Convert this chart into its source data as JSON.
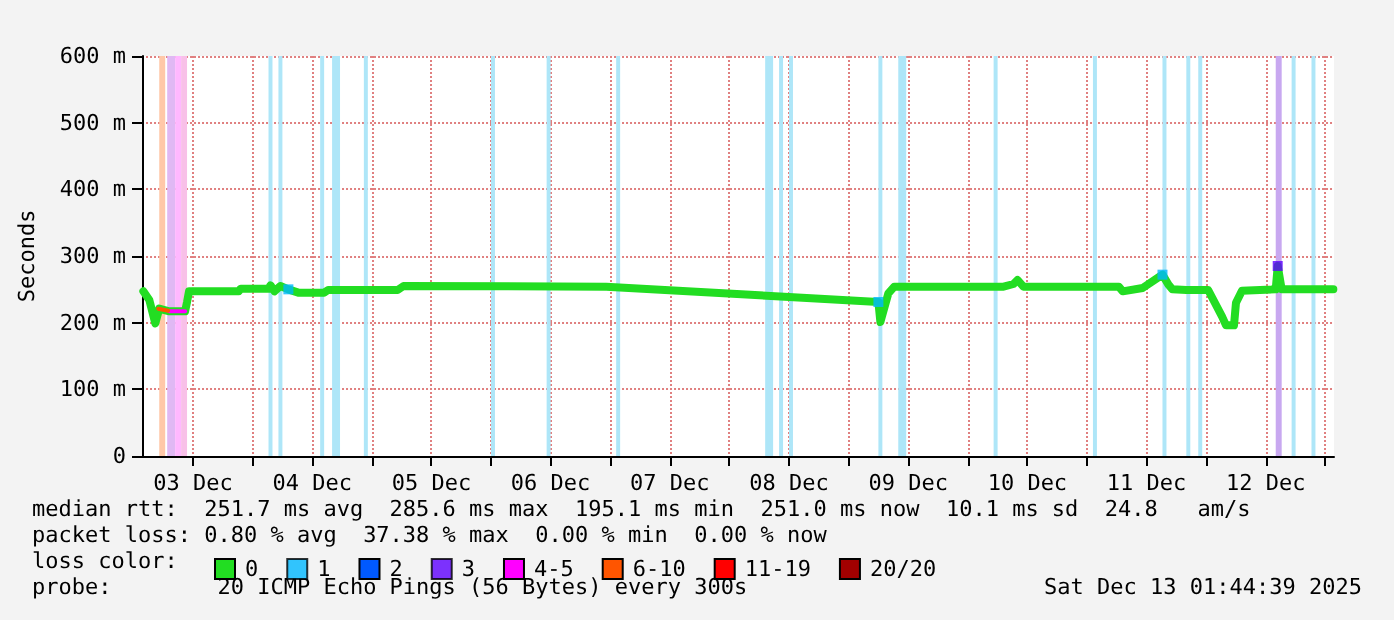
{
  "chart_data": {
    "type": "line",
    "ylabel": "Seconds",
    "legend_title": "loss color:",
    "legend": "bottom",
    "grid": true,
    "line_style": "solid",
    "xlim": [
      "2025-12-03T01:44",
      "2025-12-13T01:44"
    ],
    "xticks": [
      {
        "value": "2025-12-03T12:00",
        "label": "03 Dec"
      },
      {
        "value": "2025-12-04T00:00",
        "label": null
      },
      {
        "value": "2025-12-04T12:00",
        "label": "04 Dec"
      },
      {
        "value": "2025-12-05T00:00",
        "label": null
      },
      {
        "value": "2025-12-05T12:00",
        "label": "05 Dec"
      },
      {
        "value": "2025-12-06T00:00",
        "label": null
      },
      {
        "value": "2025-12-06T12:00",
        "label": "06 Dec"
      },
      {
        "value": "2025-12-07T00:00",
        "label": null
      },
      {
        "value": "2025-12-07T12:00",
        "label": "07 Dec"
      },
      {
        "value": "2025-12-08T00:00",
        "label": null
      },
      {
        "value": "2025-12-08T12:00",
        "label": "08 Dec"
      },
      {
        "value": "2025-12-09T00:00",
        "label": null
      },
      {
        "value": "2025-12-09T12:00",
        "label": "09 Dec"
      },
      {
        "value": "2025-12-10T00:00",
        "label": null
      },
      {
        "value": "2025-12-10T12:00",
        "label": "10 Dec"
      },
      {
        "value": "2025-12-11T00:00",
        "label": null
      },
      {
        "value": "2025-12-11T12:00",
        "label": "11 Dec"
      },
      {
        "value": "2025-12-12T00:00",
        "label": null
      },
      {
        "value": "2025-12-12T12:00",
        "label": "12 Dec"
      },
      {
        "value": "2025-12-13T00:00",
        "label": null
      }
    ],
    "ylim": [
      0,
      600
    ],
    "yticks": [
      0,
      {
        "value": 100,
        "label": "100 m"
      },
      {
        "value": 200,
        "label": "200 m"
      },
      {
        "value": 300,
        "label": "300 m"
      },
      {
        "value": 400,
        "label": "400 m"
      },
      {
        "value": 500,
        "label": "500 m"
      },
      {
        "value": 600,
        "label": "600 m"
      }
    ],
    "series": [
      {
        "name": "0",
        "color": "#22dd22",
        "x": [
          "2025-12-03T02:00",
          "2025-12-03T03:12",
          "2025-12-03T04:24",
          "2025-12-03T05:12",
          "2025-12-03T07:12",
          "2025-12-03T10:24",
          "2025-12-03T10:48",
          "2025-12-03T11:12",
          "2025-12-03T21:12",
          "2025-12-03T21:36",
          "2025-12-04T03:12",
          "2025-12-04T03:36",
          "2025-12-04T04:24",
          "2025-12-04T05:36",
          "2025-12-04T07:12",
          "2025-12-04T09:12",
          "2025-12-04T14:24",
          "2025-12-04T15:12",
          "2025-12-05T05:12",
          "2025-12-05T06:24",
          "2025-12-06T23:12",
          "2025-12-09T06:00",
          "2025-12-09T06:24",
          "2025-12-09T08:00",
          "2025-12-09T09:12",
          "2025-12-10T07:12",
          "2025-12-10T09:12",
          "2025-12-10T10:00",
          "2025-12-10T11:12",
          "2025-12-11T06:24",
          "2025-12-11T07:12",
          "2025-12-11T11:12",
          "2025-12-11T15:12",
          "2025-12-11T16:24",
          "2025-12-11T17:12",
          "2025-12-11T20:00",
          "2025-12-12T00:24",
          "2025-12-12T03:12",
          "2025-12-12T04:00",
          "2025-12-12T05:36",
          "2025-12-12T06:00",
          "2025-12-12T07:12",
          "2025-12-12T14:00",
          "2025-12-12T14:24",
          "2025-12-12T15:12",
          "2025-12-13T01:36"
        ],
        "values": [
          247,
          234,
          199,
          221,
          217,
          217,
          231,
          247,
          247,
          251,
          251,
          256,
          247,
          255,
          250,
          245,
          245,
          249,
          249,
          255,
          254,
          231,
          201,
          244,
          254,
          254,
          258,
          264,
          254,
          254,
          247,
          252,
          272,
          257,
          250,
          249,
          249,
          209,
          196,
          196,
          230,
          248,
          250,
          285,
          250,
          250
        ]
      },
      {
        "name": "1",
        "type": "scatter",
        "color": "#00b8ff",
        "x": [
          "2025-12-04T07:12",
          "2025-12-09T06:00",
          "2025-12-11T15:12"
        ],
        "values": [
          250,
          231,
          272
        ]
      },
      {
        "name": "2",
        "color": "#0059ff"
      },
      {
        "name": "3",
        "type": "scatter",
        "color": "#5e00ff",
        "x": [
          "2025-12-12T14:24"
        ],
        "values": [
          285
        ]
      },
      {
        "name": "4-5",
        "color": "#ff00ff",
        "x": [
          "2025-12-03T07:12",
          "2025-12-03T10:24"
        ],
        "values": [
          217,
          217
        ]
      },
      {
        "name": "6-10",
        "color": "#ff5500",
        "x": [
          "2025-12-03T05:00",
          "2025-12-03T07:00"
        ],
        "values": [
          221,
          218
        ]
      },
      {
        "name": "11-19",
        "color": "#ff0000"
      },
      {
        "name": "20/20",
        "color": "#a10000"
      }
    ],
    "bands": [
      {
        "axis": "x",
        "from": "2025-12-03T05:12",
        "to": "2025-12-03T06:24",
        "color": "#ffc8a8"
      },
      {
        "axis": "x",
        "from": "2025-12-03T06:48",
        "to": "2025-12-03T08:24",
        "color": "#e0b8f4"
      },
      {
        "axis": "x",
        "from": "2025-12-03T08:24",
        "to": "2025-12-03T09:36",
        "color": "#ffb8ff"
      },
      {
        "axis": "x",
        "from": "2025-12-03T09:36",
        "to": "2025-12-03T10:48",
        "color": "#f8c0e8"
      },
      {
        "axis": "x",
        "from": "2025-12-04T03:12",
        "to": "2025-12-04T04:00",
        "color": "#aee6f8"
      },
      {
        "axis": "x",
        "from": "2025-12-04T05:12",
        "to": "2025-12-04T06:00",
        "color": "#aee6f8"
      },
      {
        "axis": "x",
        "from": "2025-12-04T13:36",
        "to": "2025-12-04T14:24",
        "color": "#aee6f8"
      },
      {
        "axis": "x",
        "from": "2025-12-04T16:00",
        "to": "2025-12-04T17:36",
        "color": "#aee6f8"
      },
      {
        "axis": "x",
        "from": "2025-12-04T22:24",
        "to": "2025-12-04T23:12",
        "color": "#aee6f8"
      },
      {
        "axis": "x",
        "from": "2025-12-06T00:00",
        "to": "2025-12-06T00:48",
        "color": "#aee6f8"
      },
      {
        "axis": "x",
        "from": "2025-12-06T11:12",
        "to": "2025-12-06T12:00",
        "color": "#aee6f8"
      },
      {
        "axis": "x",
        "from": "2025-12-07T01:12",
        "to": "2025-12-07T02:00",
        "color": "#aee6f8"
      },
      {
        "axis": "x",
        "from": "2025-12-08T07:12",
        "to": "2025-12-08T08:48",
        "color": "#aee6f8"
      },
      {
        "axis": "x",
        "from": "2025-12-08T10:00",
        "to": "2025-12-08T10:48",
        "color": "#aee6f8"
      },
      {
        "axis": "x",
        "from": "2025-12-08T12:00",
        "to": "2025-12-08T12:48",
        "color": "#aee6f8"
      },
      {
        "axis": "x",
        "from": "2025-12-09T06:00",
        "to": "2025-12-09T06:48",
        "color": "#aee6f8"
      },
      {
        "axis": "x",
        "from": "2025-12-09T10:00",
        "to": "2025-12-09T11:36",
        "color": "#aee6f8"
      },
      {
        "axis": "x",
        "from": "2025-12-10T05:12",
        "to": "2025-12-10T06:00",
        "color": "#aee6f8"
      },
      {
        "axis": "x",
        "from": "2025-12-11T01:12",
        "to": "2025-12-11T02:00",
        "color": "#aee6f8"
      },
      {
        "axis": "x",
        "from": "2025-12-11T15:12",
        "to": "2025-12-11T16:00",
        "color": "#aee6f8"
      },
      {
        "axis": "x",
        "from": "2025-12-11T20:00",
        "to": "2025-12-11T20:48",
        "color": "#aee6f8"
      },
      {
        "axis": "x",
        "from": "2025-12-11T22:24",
        "to": "2025-12-11T23:12",
        "color": "#aee6f8"
      },
      {
        "axis": "x",
        "from": "2025-12-12T14:00",
        "to": "2025-12-12T15:12",
        "color": "#c8a8f0"
      },
      {
        "axis": "x",
        "from": "2025-12-12T17:12",
        "to": "2025-12-12T18:00",
        "color": "#aee6f8"
      },
      {
        "axis": "x",
        "from": "2025-12-12T21:12",
        "to": "2025-12-12T22:00",
        "color": "#aee6f8"
      }
    ],
    "annotations": [
      "median rtt:  251.7 ms avg  285.6 ms max  195.1 ms min  251.0 ms now  10.1 ms sd  24.8   am/s",
      "packet loss: 0.80 % avg  37.38 % max  0.00 % min  0.00 % now",
      "probe:        20 ICMP Echo Pings (56 Bytes) every 300s",
      "Sat Dec 13 01:44:39 2025"
    ]
  }
}
